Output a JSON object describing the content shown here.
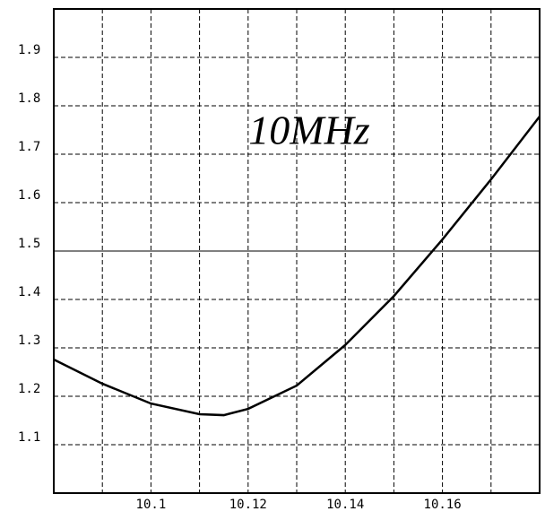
{
  "chart_data": {
    "type": "line",
    "annotation": "10MHz",
    "x": [
      10.08,
      10.09,
      10.1,
      10.11,
      10.115,
      10.12,
      10.13,
      10.14,
      10.15,
      10.16,
      10.17,
      10.18
    ],
    "series": [
      {
        "color": "#000000",
        "values": [
          1.276,
          1.226,
          1.185,
          1.163,
          1.161,
          1.174,
          1.222,
          1.306,
          1.407,
          1.524,
          1.648,
          1.778
        ]
      }
    ],
    "xlim": [
      10.08,
      10.18
    ],
    "xticks": [
      10.1,
      10.12,
      10.14,
      10.16
    ],
    "x_minor_ticks": [
      10.09,
      10.11,
      10.13,
      10.15,
      10.17
    ],
    "ylim": [
      1.0,
      2.0
    ],
    "yticks": [
      1.1,
      1.2,
      1.3,
      1.4,
      1.5,
      1.6,
      1.7,
      1.8,
      1.9
    ],
    "reference_line": 1.5,
    "grid": true
  }
}
